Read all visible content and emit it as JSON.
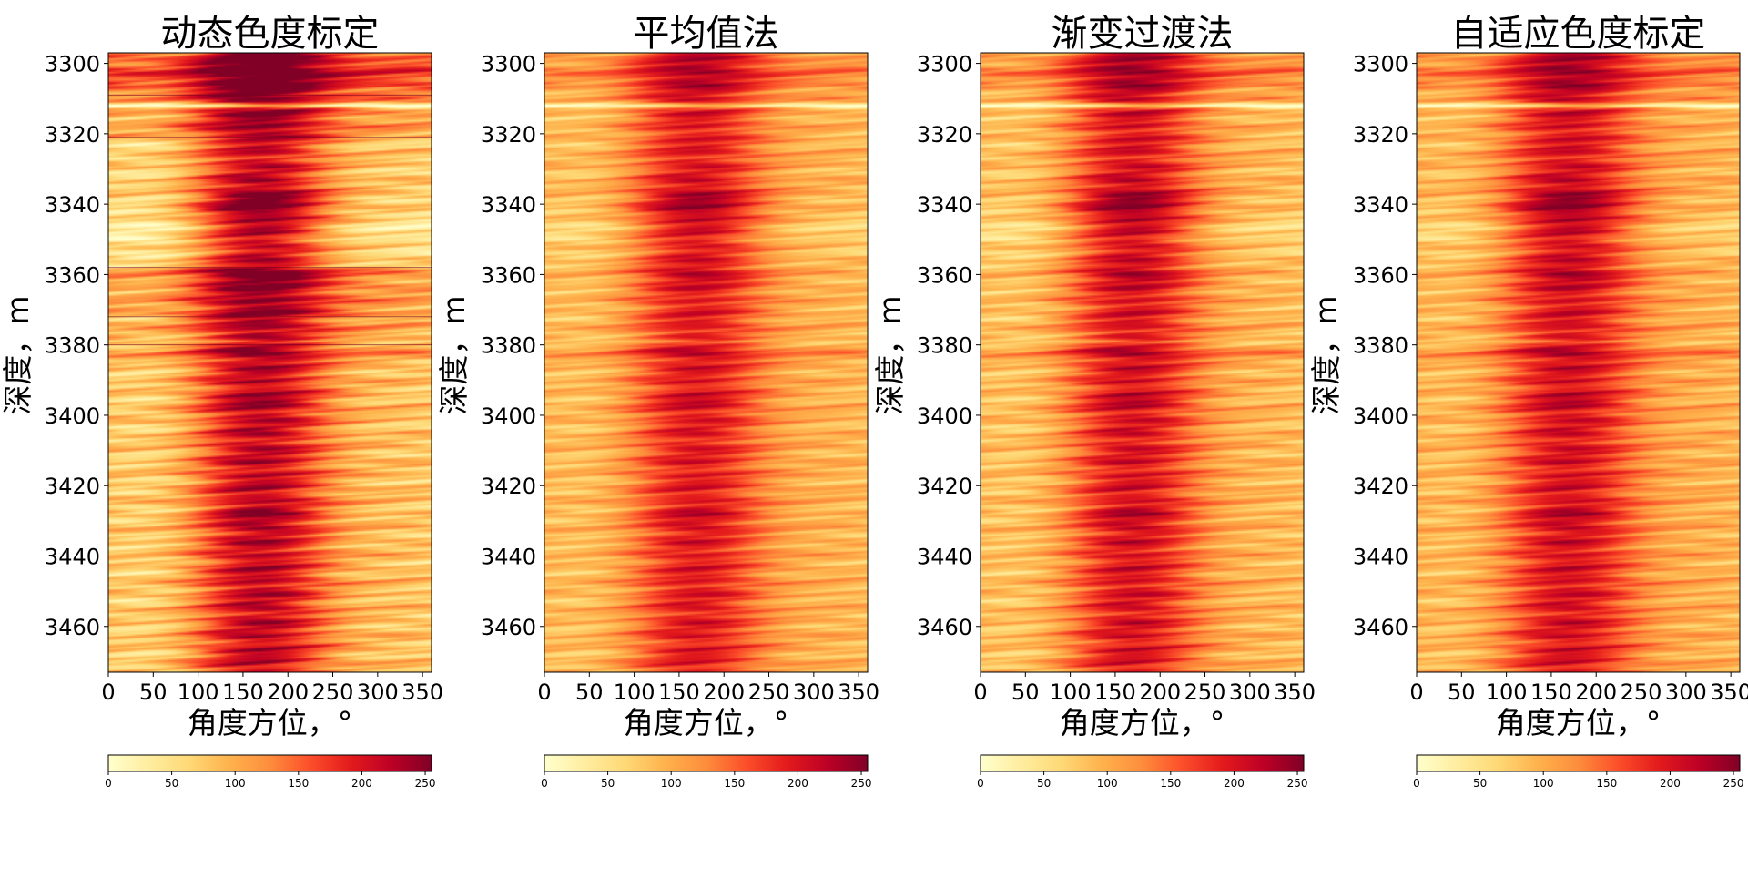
{
  "chart_data": [
    {
      "type": "heatmap",
      "title": "动态色度标定",
      "xlabel": "角度方位，°",
      "ylabel": "深度，m",
      "xlim": [
        0,
        360
      ],
      "ylim": [
        3473,
        3297
      ],
      "x_ticks": [
        "0",
        "50",
        "100",
        "150",
        "200",
        "250",
        "300",
        "350"
      ],
      "y_ticks": [
        "3300",
        "3320",
        "3340",
        "3360",
        "3380",
        "3400",
        "3420",
        "3440",
        "3460"
      ],
      "colorbar": {
        "range": [
          0,
          255
        ],
        "ticks": [
          "0",
          "50",
          "100",
          "150",
          "200",
          "250"
        ],
        "colormap": [
          "#ffffcc",
          "#ffeda0",
          "#fed976",
          "#feb24c",
          "#fd8d3c",
          "#fc4e2a",
          "#e31a1c",
          "#bd0026",
          "#800026"
        ]
      },
      "variant": "dynamic-segmented",
      "segment_boundaries_m": [
        3309,
        3321,
        3358,
        3372,
        3380
      ]
    },
    {
      "type": "heatmap",
      "title": "平均值法",
      "xlabel": "角度方位，°",
      "ylabel": "深度，m",
      "xlim": [
        0,
        360
      ],
      "ylim": [
        3473,
        3297
      ],
      "x_ticks": [
        "0",
        "50",
        "100",
        "150",
        "200",
        "250",
        "300",
        "350"
      ],
      "y_ticks": [
        "3300",
        "3320",
        "3340",
        "3360",
        "3380",
        "3400",
        "3420",
        "3440",
        "3460"
      ],
      "colorbar": {
        "range": [
          0,
          255
        ],
        "ticks": [
          "0",
          "50",
          "100",
          "150",
          "200",
          "250"
        ],
        "colormap": [
          "#ffffcc",
          "#ffeda0",
          "#fed976",
          "#feb24c",
          "#fd8d3c",
          "#fc4e2a",
          "#e31a1c",
          "#bd0026",
          "#800026"
        ]
      },
      "variant": "mean"
    },
    {
      "type": "heatmap",
      "title": "渐变过渡法",
      "xlabel": "角度方位，°",
      "ylabel": "深度，m",
      "xlim": [
        0,
        360
      ],
      "ylim": [
        3473,
        3297
      ],
      "x_ticks": [
        "0",
        "50",
        "100",
        "150",
        "200",
        "250",
        "300",
        "350"
      ],
      "y_ticks": [
        "3300",
        "3320",
        "3340",
        "3360",
        "3380",
        "3400",
        "3420",
        "3440",
        "3460"
      ],
      "colorbar": {
        "range": [
          0,
          255
        ],
        "ticks": [
          "0",
          "50",
          "100",
          "150",
          "200",
          "250"
        ],
        "colormap": [
          "#ffffcc",
          "#ffeda0",
          "#fed976",
          "#feb24c",
          "#fd8d3c",
          "#fc4e2a",
          "#e31a1c",
          "#bd0026",
          "#800026"
        ]
      },
      "variant": "gradient"
    },
    {
      "type": "heatmap",
      "title": "自适应色度标定",
      "xlabel": "角度方位，°",
      "ylabel": "深度，m",
      "xlim": [
        0,
        360
      ],
      "ylim": [
        3473,
        3297
      ],
      "x_ticks": [
        "0",
        "50",
        "100",
        "150",
        "200",
        "250",
        "300",
        "350"
      ],
      "y_ticks": [
        "3300",
        "3320",
        "3340",
        "3360",
        "3380",
        "3400",
        "3420",
        "3440",
        "3460"
      ],
      "colorbar": {
        "range": [
          0,
          255
        ],
        "ticks": [
          "0",
          "50",
          "100",
          "150",
          "200",
          "250"
        ],
        "colormap": [
          "#ffffcc",
          "#ffeda0",
          "#fed976",
          "#feb24c",
          "#fd8d3c",
          "#fc4e2a",
          "#e31a1c",
          "#bd0026",
          "#800026"
        ]
      },
      "variant": "adaptive"
    }
  ]
}
